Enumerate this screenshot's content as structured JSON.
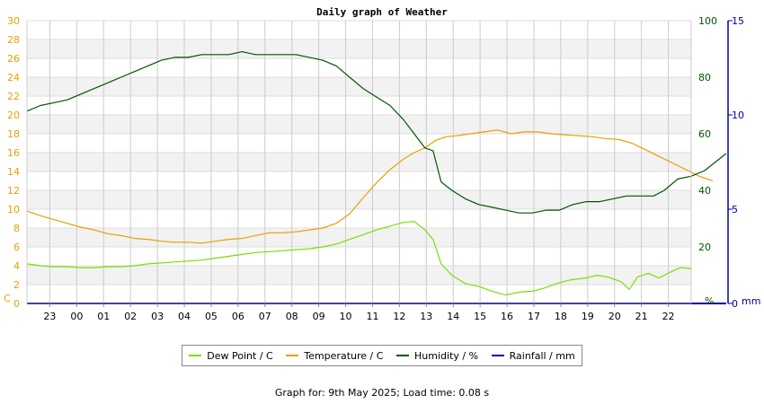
{
  "chart_data": {
    "type": "line",
    "title": "Daily graph of Weather",
    "x_tick_labels": [
      "23",
      "00",
      "01",
      "02",
      "03",
      "04",
      "05",
      "06",
      "07",
      "08",
      "09",
      "10",
      "11",
      "12",
      "13",
      "14",
      "15",
      "16",
      "17",
      "18",
      "19",
      "20",
      "21",
      "22"
    ],
    "x_range_hours": [
      0,
      24
    ],
    "left_axis": {
      "unit_label": "C",
      "range": [
        0,
        30
      ],
      "ticks": [
        0,
        2,
        4,
        6,
        8,
        10,
        12,
        14,
        16,
        18,
        20,
        22,
        24,
        26,
        28,
        30
      ],
      "color": "#e8a000"
    },
    "right_axis_1": {
      "unit_label": "%",
      "range": [
        0,
        100
      ],
      "ticks": [
        20,
        40,
        60,
        80,
        100
      ],
      "color": "#005500"
    },
    "right_axis_2": {
      "unit_label": "mm",
      "range": [
        0,
        15
      ],
      "ticks": [
        0,
        5,
        10,
        15
      ],
      "color": "#0000aa"
    },
    "grid": true,
    "legend_position": "bottom",
    "series": [
      {
        "name": "Dew Point / C",
        "axis": "left",
        "color": "#77e000",
        "points": [
          [
            0,
            4.2
          ],
          [
            0.5,
            4.0
          ],
          [
            1,
            3.9
          ],
          [
            1.5,
            3.9
          ],
          [
            2,
            3.8
          ],
          [
            2.5,
            3.8
          ],
          [
            3,
            3.9
          ],
          [
            3.5,
            3.9
          ],
          [
            4,
            4.0
          ],
          [
            4.5,
            4.2
          ],
          [
            5,
            4.3
          ],
          [
            5.5,
            4.4
          ],
          [
            6,
            4.5
          ],
          [
            6.5,
            4.6
          ],
          [
            7,
            4.8
          ],
          [
            7.5,
            5.0
          ],
          [
            8,
            5.2
          ],
          [
            8.5,
            5.4
          ],
          [
            9,
            5.5
          ],
          [
            9.5,
            5.6
          ],
          [
            10,
            5.7
          ],
          [
            10.5,
            5.8
          ],
          [
            11,
            6.0
          ],
          [
            11.5,
            6.3
          ],
          [
            12,
            6.8
          ],
          [
            12.5,
            7.3
          ],
          [
            13,
            7.8
          ],
          [
            13.5,
            8.2
          ],
          [
            14,
            8.6
          ],
          [
            14.4,
            8.7
          ],
          [
            14.8,
            7.8
          ],
          [
            15.1,
            6.8
          ],
          [
            15.4,
            4.2
          ],
          [
            15.8,
            3.0
          ],
          [
            16.3,
            2.1
          ],
          [
            16.8,
            1.8
          ],
          [
            17.3,
            1.3
          ],
          [
            17.8,
            0.9
          ],
          [
            18.3,
            1.2
          ],
          [
            18.8,
            1.3
          ],
          [
            19.2,
            1.6
          ],
          [
            19.8,
            2.2
          ],
          [
            20.2,
            2.5
          ],
          [
            20.8,
            2.7
          ],
          [
            21.2,
            3.0
          ],
          [
            21.6,
            2.8
          ],
          [
            22.1,
            2.3
          ],
          [
            22.4,
            1.5
          ],
          [
            22.7,
            2.8
          ],
          [
            23.1,
            3.2
          ],
          [
            23.5,
            2.7
          ],
          [
            23.9,
            3.3
          ],
          [
            24.3,
            3.8
          ],
          [
            24.7,
            3.7
          ]
        ]
      },
      {
        "name": "Temperature / C",
        "axis": "left",
        "color": "#e8a000",
        "points": [
          [
            0,
            9.8
          ],
          [
            0.5,
            9.3
          ],
          [
            1,
            8.9
          ],
          [
            1.5,
            8.5
          ],
          [
            2,
            8.1
          ],
          [
            2.5,
            7.8
          ],
          [
            3,
            7.4
          ],
          [
            3.5,
            7.2
          ],
          [
            4,
            6.9
          ],
          [
            4.5,
            6.8
          ],
          [
            5,
            6.6
          ],
          [
            5.5,
            6.5
          ],
          [
            6,
            6.5
          ],
          [
            6.5,
            6.4
          ],
          [
            7,
            6.6
          ],
          [
            7.5,
            6.8
          ],
          [
            8,
            6.9
          ],
          [
            8.5,
            7.2
          ],
          [
            9,
            7.5
          ],
          [
            9.5,
            7.5
          ],
          [
            10,
            7.6
          ],
          [
            10.5,
            7.8
          ],
          [
            11,
            8.0
          ],
          [
            11.5,
            8.5
          ],
          [
            12,
            9.5
          ],
          [
            12.5,
            11.2
          ],
          [
            13,
            12.8
          ],
          [
            13.5,
            14.2
          ],
          [
            14,
            15.3
          ],
          [
            14.4,
            16.0
          ],
          [
            14.8,
            16.5
          ],
          [
            15.2,
            17.3
          ],
          [
            15.6,
            17.7
          ],
          [
            16,
            17.8
          ],
          [
            16.5,
            18.0
          ],
          [
            17,
            18.2
          ],
          [
            17.5,
            18.4
          ],
          [
            18,
            18.0
          ],
          [
            18.5,
            18.2
          ],
          [
            19,
            18.2
          ],
          [
            19.5,
            18.0
          ],
          [
            20,
            17.9
          ],
          [
            20.5,
            17.8
          ],
          [
            21,
            17.7
          ],
          [
            21.5,
            17.5
          ],
          [
            22,
            17.4
          ],
          [
            22.5,
            17.0
          ],
          [
            23,
            16.3
          ],
          [
            23.5,
            15.6
          ],
          [
            24,
            14.9
          ],
          [
            24.5,
            14.2
          ],
          [
            25,
            13.5
          ],
          [
            25.5,
            13.0
          ]
        ]
      },
      {
        "name": "Humidity / %",
        "axis": "right1",
        "color": "#005500",
        "points": [
          [
            0,
            68
          ],
          [
            0.5,
            70
          ],
          [
            1,
            71
          ],
          [
            1.5,
            72
          ],
          [
            2,
            74
          ],
          [
            2.5,
            76
          ],
          [
            3,
            78
          ],
          [
            3.5,
            80
          ],
          [
            4,
            82
          ],
          [
            4.5,
            84
          ],
          [
            5,
            86
          ],
          [
            5.5,
            87
          ],
          [
            6,
            87
          ],
          [
            6.5,
            88
          ],
          [
            7,
            88
          ],
          [
            7.5,
            88
          ],
          [
            8,
            89
          ],
          [
            8.5,
            88
          ],
          [
            9,
            88
          ],
          [
            9.5,
            88
          ],
          [
            10,
            88
          ],
          [
            10.5,
            87
          ],
          [
            11,
            86
          ],
          [
            11.5,
            84
          ],
          [
            12,
            80
          ],
          [
            12.5,
            76
          ],
          [
            13,
            73
          ],
          [
            13.5,
            70
          ],
          [
            14,
            65
          ],
          [
            14.4,
            60
          ],
          [
            14.8,
            55
          ],
          [
            15.1,
            54
          ],
          [
            15.4,
            43
          ],
          [
            15.8,
            40
          ],
          [
            16.3,
            37
          ],
          [
            16.8,
            35
          ],
          [
            17.3,
            34
          ],
          [
            17.8,
            33
          ],
          [
            18.3,
            32
          ],
          [
            18.8,
            32
          ],
          [
            19.3,
            33
          ],
          [
            19.8,
            33
          ],
          [
            20.3,
            35
          ],
          [
            20.8,
            36
          ],
          [
            21.3,
            36
          ],
          [
            21.8,
            37
          ],
          [
            22.3,
            38
          ],
          [
            22.8,
            38
          ],
          [
            23.3,
            38
          ],
          [
            23.7,
            40
          ],
          [
            24.2,
            44
          ],
          [
            24.7,
            45
          ],
          [
            25.2,
            47
          ],
          [
            25.6,
            50
          ],
          [
            26,
            53
          ]
        ]
      },
      {
        "name": "Rainfall / mm",
        "axis": "right2",
        "color": "#0000aa",
        "points": [
          [
            0,
            0
          ],
          [
            26,
            0
          ]
        ]
      }
    ]
  },
  "footer": "Graph for: 9th May 2025; Load time: 0.08 s"
}
